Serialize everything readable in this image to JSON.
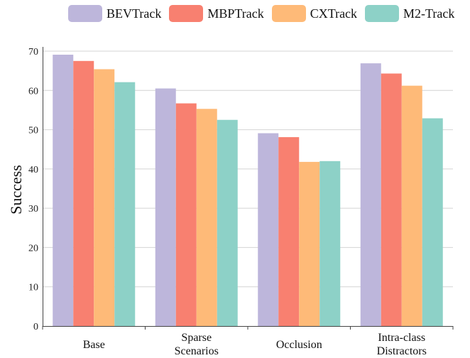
{
  "chart_data": {
    "type": "bar",
    "categories": [
      [
        "Base"
      ],
      [
        "Sparse",
        "Scenarios"
      ],
      [
        "Occlusion"
      ],
      [
        "Intra-class",
        "Distractors"
      ]
    ],
    "series": [
      {
        "name": "BEVTrack",
        "color": "#bdb6db",
        "values": [
          69.1,
          60.5,
          49.1,
          66.9
        ]
      },
      {
        "name": "MBPTrack",
        "color": "#f88070",
        "values": [
          67.5,
          56.7,
          48.1,
          64.3
        ]
      },
      {
        "name": "CXTrack",
        "color": "#feba78",
        "values": [
          65.4,
          55.3,
          41.8,
          61.2
        ]
      },
      {
        "name": "M2-Track",
        "color": "#8dd1c7",
        "values": [
          62.1,
          52.5,
          42.0,
          52.9
        ]
      }
    ],
    "title": "",
    "xlabel": "",
    "ylabel": "Success",
    "ylim": [
      0,
      70
    ],
    "yticks": [
      0,
      10,
      20,
      30,
      40,
      50,
      60,
      70
    ],
    "grid": true,
    "legend_position": "top"
  }
}
